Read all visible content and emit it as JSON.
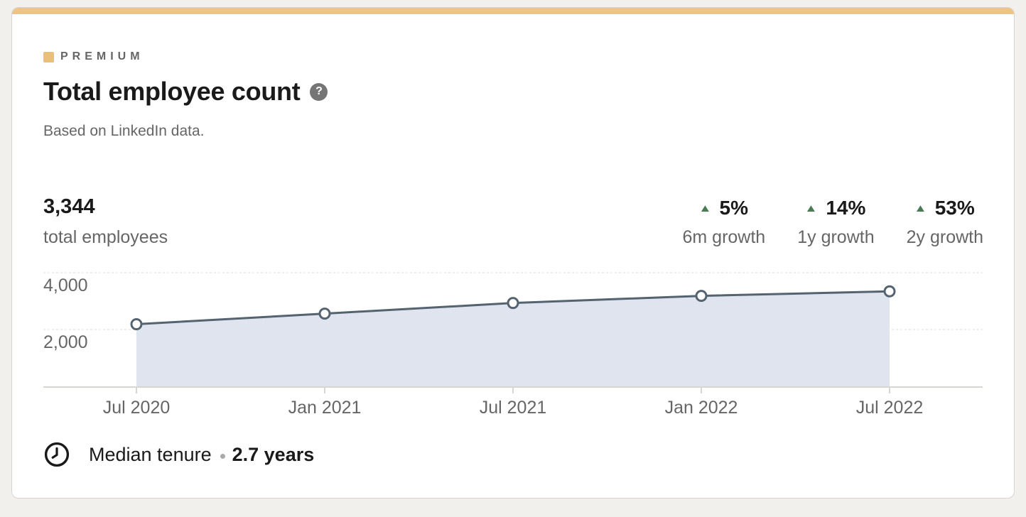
{
  "premium": {
    "label": "PREMIUM"
  },
  "header": {
    "title": "Total employee count",
    "help_icon": "question-mark",
    "subtitle": "Based on LinkedIn data."
  },
  "summary": {
    "total_value": "3,344",
    "total_label": "total employees",
    "growth": [
      {
        "direction": "up",
        "value": "5%",
        "label": "6m growth"
      },
      {
        "direction": "up",
        "value": "14%",
        "label": "1y growth"
      },
      {
        "direction": "up",
        "value": "53%",
        "label": "2y growth"
      }
    ]
  },
  "chart_data": {
    "type": "area",
    "title": "Total employee count",
    "categories": [
      "Jul 2020",
      "Jan 2021",
      "Jul 2021",
      "Jan 2022",
      "Jul 2022"
    ],
    "values": [
      2186,
      2560,
      2933,
      3185,
      3344
    ],
    "yticks": [
      2000,
      4000
    ],
    "ytick_labels": [
      "2,000",
      "4,000"
    ],
    "ylim": [
      0,
      4200
    ],
    "xlabel": "",
    "ylabel": "",
    "grid": true,
    "legend": "none",
    "colors": {
      "line": "#556371",
      "fill": "#dfe4ee",
      "marker_fill": "#ffffff",
      "grid": "#dedcd8",
      "axis": "#d8d6d2"
    }
  },
  "footer": {
    "tenure_label": "Median tenure",
    "tenure_value": "2.7 years"
  },
  "colors": {
    "premium_gold": "#edc581",
    "growth_green": "#4a7b55"
  }
}
